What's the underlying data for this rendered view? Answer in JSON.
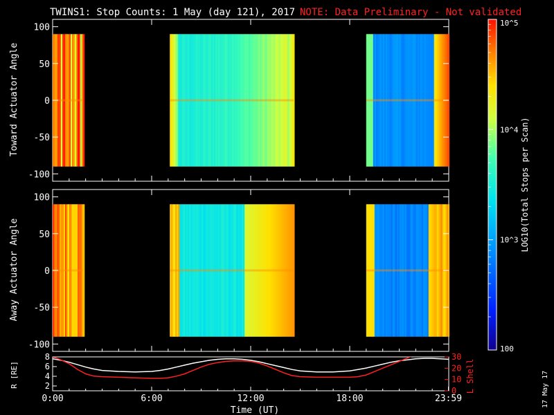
{
  "header": {
    "title": "TWINS1: Stop Counts:  1 May (day 121), 2017",
    "note": "NOTE: Data Preliminary - Not validated",
    "note_color": "#ff2020"
  },
  "footer": {
    "date_stamp": "17 May 17"
  },
  "colorbar": {
    "label": "LOG10(Total Stops per Scan)",
    "ticks": [
      "10^5",
      "10^4",
      "10^3",
      "100"
    ],
    "min_value": 100,
    "max_value": 100000,
    "scale": "log",
    "colormap": "rainbow (blue-cyan-green-yellow-red)"
  },
  "chart_data": [
    {
      "type": "heatmap",
      "name": "toward_panel",
      "ylabel": "Toward Actuator Angle",
      "xlim_hours": [
        0,
        24
      ],
      "ylim": [
        -110,
        110
      ],
      "y_ticks": [
        "100",
        "50",
        "0",
        "-50",
        "-100"
      ],
      "y_tick_values": [
        100,
        50,
        0,
        -50,
        -100
      ],
      "data_y_range": [
        -90,
        90
      ],
      "data_intervals": [
        {
          "start_h": 0.0,
          "end_h": 1.85,
          "dominant": "red/orange with yellow streaks"
        },
        {
          "start_h": 7.1,
          "end_h": 14.6,
          "dominant": "yellow at edges, cyan center"
        },
        {
          "start_h": 19.0,
          "end_h": 24.0,
          "dominant": "blue center, yellow-orange edges"
        }
      ]
    },
    {
      "type": "heatmap",
      "name": "away_panel",
      "ylabel": "Away Actuator Angle",
      "xlim_hours": [
        0,
        24
      ],
      "ylim": [
        -110,
        110
      ],
      "y_ticks": [
        "100",
        "50",
        "0",
        "-50",
        "-100"
      ],
      "y_tick_values": [
        100,
        50,
        0,
        -50,
        -100
      ],
      "data_y_range": [
        -90,
        90
      ],
      "data_intervals": [
        {
          "start_h": 0.0,
          "end_h": 1.85,
          "dominant": "red/orange"
        },
        {
          "start_h": 7.1,
          "end_h": 14.6,
          "dominant": "orange edges, cyan center"
        },
        {
          "start_h": 19.0,
          "end_h": 24.0,
          "dominant": "blue center, red edges"
        }
      ]
    },
    {
      "type": "line",
      "name": "orbit_panel",
      "ylabel_left": "R [RE]",
      "ylabel_right": "L Shell",
      "ylabel_right_color": "#ff2020",
      "ylim_left": [
        1,
        8
      ],
      "ylim_right": [
        0,
        30
      ],
      "y_ticks_left": [
        "8",
        "6",
        "4",
        "2"
      ],
      "y_ticks_right": [
        "30",
        "20",
        "10",
        "0"
      ],
      "xlabel": "Time (UT)",
      "x_ticks": [
        "0:00",
        "6:00",
        "12:00",
        "18:00",
        "23:59"
      ],
      "x_tick_hours": [
        0,
        6,
        12,
        18,
        23.98
      ],
      "series": [
        {
          "name": "R",
          "axis": "left",
          "color": "#ffffff",
          "x": [
            0,
            0.5,
            1.0,
            1.5,
            2.0,
            2.5,
            3.0,
            4.0,
            5.0,
            6.0,
            6.5,
            7.0,
            7.5,
            8.0,
            8.5,
            9.0,
            9.5,
            10.0,
            10.5,
            11.0,
            11.5,
            12.0,
            12.5,
            13.0,
            13.5,
            14.0,
            14.5,
            15.0,
            16.0,
            17.0,
            18.0,
            18.5,
            19.0,
            19.5,
            20.0,
            20.5,
            21.0,
            21.5,
            22.0,
            22.5,
            23.0,
            23.5,
            24.0
          ],
          "values": [
            7.6,
            7.3,
            6.9,
            6.4,
            5.9,
            5.5,
            5.2,
            5.0,
            4.9,
            5.0,
            5.2,
            5.5,
            5.9,
            6.3,
            6.7,
            7.0,
            7.3,
            7.5,
            7.6,
            7.6,
            7.5,
            7.3,
            7.0,
            6.6,
            6.2,
            5.8,
            5.4,
            5.1,
            4.9,
            4.9,
            5.1,
            5.4,
            5.7,
            6.1,
            6.5,
            6.9,
            7.2,
            7.4,
            7.6,
            7.7,
            7.7,
            7.6,
            7.5
          ]
        },
        {
          "name": "L Shell",
          "axis": "right",
          "color": "#ff2020",
          "x": [
            0,
            0.4,
            1.0,
            1.5,
            2.0,
            2.5,
            3.0,
            4.0,
            5.0,
            6.0,
            6.5,
            7.0,
            7.5,
            8.0,
            8.5,
            9.0,
            9.5,
            10.0,
            10.5,
            11.0,
            11.5,
            12.0,
            12.5,
            13.0,
            13.5,
            14.0,
            14.5,
            15.0,
            16.0,
            17.0,
            18.0,
            18.5,
            19.0,
            19.5,
            20.0,
            20.5,
            21.0,
            21.5,
            22.0
          ],
          "values": [
            30,
            28,
            24,
            19,
            15,
            13,
            12.5,
            12,
            11.5,
            11,
            11,
            11.5,
            13,
            15,
            18,
            21,
            23.5,
            25,
            26,
            26.5,
            26.5,
            26,
            24.5,
            22,
            19,
            16,
            13.5,
            12.5,
            12,
            12,
            12,
            12.5,
            14,
            17,
            20,
            23,
            26,
            29,
            32
          ]
        }
      ]
    }
  ]
}
